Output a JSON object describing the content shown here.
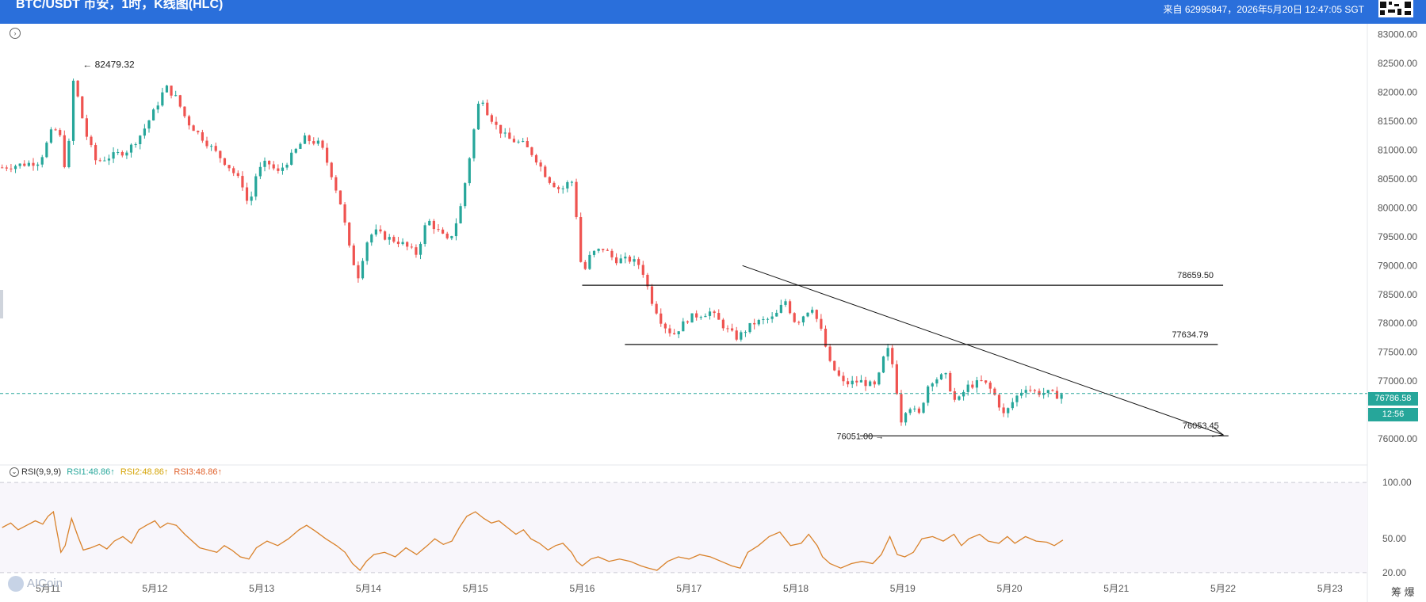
{
  "header": {
    "title": "BTC/USDT 币安，1时，K线图(HLC)",
    "info": "来自 62995847，2026年5月20日 12:47:05 SGT"
  },
  "price_badge": "76786.58",
  "time_badge": "12:56",
  "rsi_legend": {
    "name": "RSI(9,9,9)",
    "rsi1": "RSI1:48.86↑",
    "rsi2": "RSI2:48.86↑",
    "rsi3": "RSI3:48.86↑"
  },
  "logo": "AICoin",
  "corner_text": "筹 爆",
  "colors": {
    "up": "#26a69a",
    "down": "#ef5350",
    "rsi": "#d9822b",
    "header": "#2a6fdb",
    "current_line": "#26a69a"
  },
  "chart_data": [
    {
      "type": "candlestick",
      "title": "BTC/USDT 币安，1时，K线图(HLC)",
      "x_tick_labels": [
        "5月11",
        "5月12",
        "5月13",
        "5月14",
        "5月15",
        "5月16",
        "5月17",
        "5月18",
        "5月19",
        "5月20",
        "5月21",
        "5月22",
        "5月23"
      ],
      "y_tick_labels": [
        "83000.00",
        "82500.00",
        "82000.00",
        "81500.00",
        "81000.00",
        "80500.00",
        "80000.00",
        "79500.00",
        "79000.00",
        "78500.00",
        "78000.00",
        "77500.00",
        "77000.00",
        "76000.00"
      ],
      "ylim": [
        75850,
        83050
      ],
      "x_day_range": [
        10.55,
        23.35
      ],
      "grid": false,
      "current_price": 76786.58,
      "annotations": [
        {
          "label": "82479.32",
          "x": 11.22,
          "y": 82479.32,
          "kind": "high-marker"
        },
        {
          "label": "76051.00",
          "x": 18.9,
          "y": 76051.0,
          "kind": "low-marker"
        }
      ],
      "horizontal_levels": [
        {
          "label": "78659.50",
          "y": 78659.5,
          "x_start": 16.0,
          "x_end": 22.0
        },
        {
          "label": "77634.79",
          "y": 77634.79,
          "x_start": 16.4,
          "x_end": 21.95
        },
        {
          "label": "76053.45",
          "y": 76053.45,
          "x_start": 18.6,
          "x_end": 22.05
        }
      ],
      "trendline": {
        "x_start": 17.5,
        "y_start": 79000,
        "x_end": 22.0,
        "y_end": 76070
      },
      "close_path": [
        [
          10.57,
          80700
        ],
        [
          10.75,
          80750
        ],
        [
          10.92,
          80800
        ],
        [
          11.05,
          81400
        ],
        [
          11.12,
          81200
        ],
        [
          11.18,
          80400
        ],
        [
          11.22,
          82300
        ],
        [
          11.28,
          81900
        ],
        [
          11.35,
          81300
        ],
        [
          11.45,
          80800
        ],
        [
          11.6,
          80900
        ],
        [
          11.75,
          81000
        ],
        [
          11.88,
          81300
        ],
        [
          12.0,
          81700
        ],
        [
          12.1,
          82100
        ],
        [
          12.2,
          81900
        ],
        [
          12.3,
          81500
        ],
        [
          12.4,
          81300
        ],
        [
          12.55,
          81000
        ],
        [
          12.7,
          80700
        ],
        [
          12.82,
          80400
        ],
        [
          12.88,
          80000
        ],
        [
          12.95,
          80600
        ],
        [
          13.05,
          80800
        ],
        [
          13.15,
          80600
        ],
        [
          13.28,
          80900
        ],
        [
          13.4,
          81200
        ],
        [
          13.55,
          81100
        ],
        [
          13.65,
          80600
        ],
        [
          13.75,
          80000
        ],
        [
          13.82,
          79300
        ],
        [
          13.9,
          78800
        ],
        [
          13.98,
          79400
        ],
        [
          14.05,
          79600
        ],
        [
          14.15,
          79500
        ],
        [
          14.3,
          79400
        ],
        [
          14.45,
          79200
        ],
        [
          14.55,
          79800
        ],
        [
          14.65,
          79600
        ],
        [
          14.75,
          79400
        ],
        [
          14.85,
          79900
        ],
        [
          14.92,
          80600
        ],
        [
          15.0,
          81500
        ],
        [
          15.05,
          82000
        ],
        [
          15.1,
          81700
        ],
        [
          15.2,
          81400
        ],
        [
          15.3,
          81200
        ],
        [
          15.45,
          81100
        ],
        [
          15.55,
          80900
        ],
        [
          15.68,
          80500
        ],
        [
          15.8,
          80300
        ],
        [
          15.9,
          80500
        ],
        [
          15.95,
          79800
        ],
        [
          16.0,
          78800
        ],
        [
          16.08,
          79200
        ],
        [
          16.2,
          79300
        ],
        [
          16.3,
          79100
        ],
        [
          16.45,
          79100
        ],
        [
          16.55,
          79000
        ],
        [
          16.65,
          78400
        ],
        [
          16.75,
          78000
        ],
        [
          16.85,
          77800
        ],
        [
          17.0,
          78100
        ],
        [
          17.2,
          78200
        ],
        [
          17.35,
          77900
        ],
        [
          17.45,
          77750
        ],
        [
          17.6,
          78000
        ],
        [
          17.8,
          78100
        ],
        [
          17.9,
          78400
        ],
        [
          18.0,
          78000
        ],
        [
          18.15,
          78300
        ],
        [
          18.25,
          77800
        ],
        [
          18.32,
          77300
        ],
        [
          18.45,
          76950
        ],
        [
          18.6,
          77000
        ],
        [
          18.75,
          76900
        ],
        [
          18.85,
          77600
        ],
        [
          18.92,
          77200
        ],
        [
          18.98,
          76300
        ],
        [
          19.05,
          76600
        ],
        [
          19.15,
          76400
        ],
        [
          19.25,
          77000
        ],
        [
          19.4,
          77100
        ],
        [
          19.5,
          76600
        ],
        [
          19.6,
          76900
        ],
        [
          19.75,
          77000
        ],
        [
          19.85,
          76800
        ],
        [
          19.95,
          76400
        ],
        [
          20.05,
          76700
        ],
        [
          20.15,
          76900
        ],
        [
          20.25,
          76800
        ],
        [
          20.35,
          76800
        ],
        [
          20.45,
          76750
        ],
        [
          20.5,
          76786.58
        ]
      ],
      "series": [
        {
          "name": "RSI1",
          "color": "#d9822b"
        }
      ]
    },
    {
      "type": "line",
      "title": "RSI(9,9,9)",
      "y_tick_labels": [
        "100.00",
        "50.00",
        "20.00"
      ],
      "ylim": [
        15,
        105
      ],
      "x_day_range": [
        10.55,
        23.35
      ],
      "reference_lines": [
        100,
        20
      ],
      "series": [
        {
          "name": "RSI1",
          "color": "#d9822b",
          "points": [
            [
              10.57,
              60
            ],
            [
              10.65,
              64
            ],
            [
              10.72,
              58
            ],
            [
              10.8,
              62
            ],
            [
              10.88,
              66
            ],
            [
              10.95,
              63
            ],
            [
              11.0,
              70
            ],
            [
              11.05,
              74
            ],
            [
              11.08,
              58
            ],
            [
              11.12,
              38
            ],
            [
              11.16,
              44
            ],
            [
              11.22,
              68
            ],
            [
              11.28,
              52
            ],
            [
              11.33,
              40
            ],
            [
              11.4,
              42
            ],
            [
              11.48,
              45
            ],
            [
              11.55,
              41
            ],
            [
              11.62,
              48
            ],
            [
              11.7,
              52
            ],
            [
              11.78,
              46
            ],
            [
              11.85,
              58
            ],
            [
              11.92,
              62
            ],
            [
              12.0,
              66
            ],
            [
              12.05,
              60
            ],
            [
              12.12,
              64
            ],
            [
              12.2,
              62
            ],
            [
              12.28,
              54
            ],
            [
              12.35,
              48
            ],
            [
              12.42,
              42
            ],
            [
              12.5,
              40
            ],
            [
              12.58,
              38
            ],
            [
              12.65,
              44
            ],
            [
              12.72,
              40
            ],
            [
              12.8,
              34
            ],
            [
              12.88,
              32
            ],
            [
              12.95,
              42
            ],
            [
              13.05,
              48
            ],
            [
              13.15,
              44
            ],
            [
              13.25,
              50
            ],
            [
              13.35,
              58
            ],
            [
              13.42,
              62
            ],
            [
              13.5,
              57
            ],
            [
              13.6,
              50
            ],
            [
              13.7,
              44
            ],
            [
              13.78,
              38
            ],
            [
              13.85,
              28
            ],
            [
              13.92,
              22
            ],
            [
              13.98,
              30
            ],
            [
              14.05,
              36
            ],
            [
              14.15,
              38
            ],
            [
              14.25,
              34
            ],
            [
              14.35,
              42
            ],
            [
              14.45,
              36
            ],
            [
              14.55,
              44
            ],
            [
              14.62,
              50
            ],
            [
              14.7,
              45
            ],
            [
              14.78,
              48
            ],
            [
              14.85,
              60
            ],
            [
              14.92,
              70
            ],
            [
              15.0,
              74
            ],
            [
              15.08,
              68
            ],
            [
              15.15,
              64
            ],
            [
              15.22,
              66
            ],
            [
              15.3,
              60
            ],
            [
              15.38,
              54
            ],
            [
              15.45,
              58
            ],
            [
              15.52,
              50
            ],
            [
              15.6,
              46
            ],
            [
              15.68,
              40
            ],
            [
              15.75,
              44
            ],
            [
              15.82,
              46
            ],
            [
              15.9,
              38
            ],
            [
              15.95,
              30
            ],
            [
              16.0,
              26
            ],
            [
              16.08,
              32
            ],
            [
              16.15,
              34
            ],
            [
              16.25,
              30
            ],
            [
              16.35,
              32
            ],
            [
              16.45,
              30
            ],
            [
              16.55,
              26
            ],
            [
              16.62,
              24
            ],
            [
              16.7,
              22
            ],
            [
              16.8,
              30
            ],
            [
              16.9,
              34
            ],
            [
              17.0,
              32
            ],
            [
              17.1,
              36
            ],
            [
              17.2,
              34
            ],
            [
              17.3,
              30
            ],
            [
              17.4,
              26
            ],
            [
              17.48,
              24
            ],
            [
              17.55,
              38
            ],
            [
              17.65,
              44
            ],
            [
              17.75,
              52
            ],
            [
              17.85,
              56
            ],
            [
              17.95,
              44
            ],
            [
              18.05,
              46
            ],
            [
              18.12,
              54
            ],
            [
              18.2,
              44
            ],
            [
              18.25,
              34
            ],
            [
              18.32,
              28
            ],
            [
              18.42,
              24
            ],
            [
              18.52,
              28
            ],
            [
              18.62,
              30
            ],
            [
              18.72,
              28
            ],
            [
              18.8,
              36
            ],
            [
              18.88,
              52
            ],
            [
              18.95,
              36
            ],
            [
              19.02,
              34
            ],
            [
              19.1,
              38
            ],
            [
              19.18,
              50
            ],
            [
              19.28,
              52
            ],
            [
              19.38,
              48
            ],
            [
              19.48,
              54
            ],
            [
              19.55,
              44
            ],
            [
              19.62,
              50
            ],
            [
              19.72,
              54
            ],
            [
              19.8,
              48
            ],
            [
              19.9,
              46
            ],
            [
              19.98,
              52
            ],
            [
              20.05,
              46
            ],
            [
              20.15,
              52
            ],
            [
              20.25,
              48
            ],
            [
              20.35,
              47
            ],
            [
              20.42,
              44
            ],
            [
              20.5,
              48.86
            ]
          ]
        }
      ]
    }
  ]
}
